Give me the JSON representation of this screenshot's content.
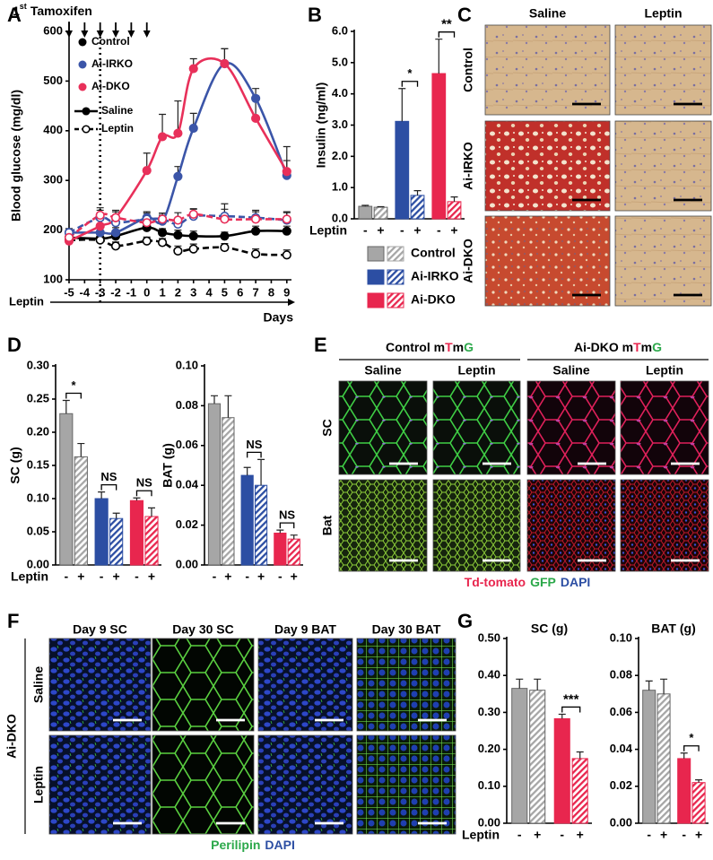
{
  "chart_data": [
    {
      "type": "line",
      "panel": "A",
      "ylabel": "Blood glucose (mg/dl)",
      "xlabel": "Days",
      "x_row_label": "Leptin",
      "tamoxifen_label": [
        "1",
        "st",
        "Tamoxifen"
      ],
      "tamoxifen_days": [
        -5,
        -4,
        -3,
        -2,
        -1,
        0
      ],
      "leptin_start": -3,
      "x": [
        -5,
        -3,
        -2,
        0,
        1,
        2,
        3,
        5,
        7,
        9
      ],
      "xlim": [
        -5,
        9.3
      ],
      "xticks": [
        -5,
        -4,
        -3,
        -2,
        -1,
        0,
        1,
        2,
        3,
        4,
        5,
        6,
        7,
        8,
        9
      ],
      "ylim": [
        100,
        600
      ],
      "yticks": [
        100,
        200,
        300,
        400,
        500,
        600
      ],
      "legend_groups": [
        {
          "name": "Control",
          "color": "#000000"
        },
        {
          "name": "Ai-IRKO",
          "color": "#3b55a8"
        },
        {
          "name": "Ai-DKO",
          "color": "#e8305a"
        }
      ],
      "legend_styles": [
        {
          "name": "Saline",
          "dashed": false
        },
        {
          "name": "Leptin",
          "dashed": true
        }
      ],
      "series": [
        {
          "color": "#000000",
          "dashed": false,
          "values": [
            185,
            183,
            188,
            205,
            195,
            190,
            188,
            188,
            198,
            198
          ],
          "errors": [
            8,
            8,
            8,
            10,
            8,
            10,
            10,
            8,
            10,
            10
          ]
        },
        {
          "color": "#000000",
          "dashed": true,
          "values": [
            180,
            180,
            168,
            178,
            175,
            158,
            162,
            165,
            152,
            150
          ],
          "errors": [
            8,
            10,
            8,
            8,
            8,
            10,
            10,
            8,
            10,
            10
          ]
        },
        {
          "color": "#3b55a8",
          "dashed": false,
          "values": [
            195,
            195,
            195,
            225,
            218,
            308,
            405,
            535,
            465,
            310
          ],
          "errors": [
            8,
            10,
            10,
            12,
            12,
            20,
            30,
            30,
            20,
            30
          ]
        },
        {
          "color": "#3b55a8",
          "dashed": true,
          "values": [
            195,
            225,
            215,
            222,
            222,
            212,
            228,
            228,
            225,
            220
          ],
          "errors": [
            8,
            15,
            12,
            12,
            12,
            12,
            15,
            25,
            15,
            15
          ]
        },
        {
          "color": "#e8305a",
          "dashed": false,
          "values": [
            178,
            208,
            225,
            320,
            388,
            395,
            525,
            535,
            425,
            318
          ],
          "errors": [
            8,
            12,
            12,
            35,
            45,
            65,
            20,
            30,
            45,
            50
          ]
        },
        {
          "color": "#e8305a",
          "dashed": true,
          "values": [
            185,
            230,
            225,
            215,
            222,
            220,
            232,
            222,
            222,
            222
          ],
          "errors": [
            8,
            15,
            15,
            15,
            12,
            15,
            10,
            20,
            15,
            15
          ]
        }
      ]
    },
    {
      "type": "bar",
      "panel": "B",
      "ylabel": "Insulin (ng/ml)",
      "x_row_label": "Leptin",
      "categories": [
        "-",
        "+",
        "-",
        "+",
        "-",
        "+"
      ],
      "values": [
        0.4,
        0.37,
        3.12,
        0.75,
        4.65,
        0.55
      ],
      "errors": [
        0.03,
        0.02,
        1.05,
        0.15,
        1.1,
        0.15
      ],
      "colors": [
        "#a6a6a6",
        "#2c4ea3",
        "#e8264e"
      ],
      "legend": [
        "Control",
        "Ai-IRKO",
        "Ai-DKO"
      ],
      "ylim": [
        0,
        6
      ],
      "yticks": [
        {
          "value": 0,
          "label": "0.0"
        },
        {
          "value": 1,
          "label": "1.0"
        },
        {
          "value": 2,
          "label": "2.0"
        },
        {
          "value": 3,
          "label": "3.0"
        },
        {
          "value": 4,
          "label": "4.0"
        },
        {
          "value": 5,
          "label": "5.0"
        },
        {
          "value": 6,
          "label": "6.0"
        }
      ],
      "annotations": [
        {
          "label": "*",
          "pair": [
            2,
            3
          ]
        },
        {
          "label": "**",
          "pair": [
            4,
            5
          ]
        }
      ]
    },
    {
      "type": "bar",
      "panel": "D",
      "ylabel": "SC (g)",
      "x_row_label": "Leptin",
      "categories": [
        "-",
        "+",
        "-",
        "+",
        "-",
        "+"
      ],
      "values": [
        0.228,
        0.163,
        0.1,
        0.07,
        0.097,
        0.073
      ],
      "errors": [
        0.02,
        0.02,
        0.01,
        0.008,
        0.004,
        0.013
      ],
      "colors": [
        "#a6a6a6",
        "#2c4ea3",
        "#e8264e"
      ],
      "ylim": [
        0,
        0.3
      ],
      "yticks": [
        {
          "value": 0,
          "label": "0.00"
        },
        0.05,
        {
          "value": 0.1,
          "label": "0.10"
        },
        0.15,
        {
          "value": 0.2,
          "label": "0.20"
        },
        0.25,
        {
          "value": 0.3,
          "label": "0.30"
        }
      ],
      "annotations": [
        {
          "label": "*",
          "pair": [
            0,
            1
          ]
        },
        {
          "label": "NS",
          "pair": [
            2,
            3
          ]
        },
        {
          "label": "NS",
          "pair": [
            4,
            5
          ]
        }
      ]
    },
    {
      "type": "bar",
      "ylabel": "BAT (g)",
      "categories": [
        "-",
        "+",
        "-",
        "+",
        "-",
        "+"
      ],
      "values": [
        0.081,
        0.074,
        0.045,
        0.04,
        0.016,
        0.013
      ],
      "errors": [
        0.004,
        0.011,
        0.004,
        0.013,
        0.0015,
        0.002
      ],
      "colors": [
        "#a6a6a6",
        "#2c4ea3",
        "#e8264e"
      ],
      "ylim": [
        0,
        0.1
      ],
      "yticks": [
        {
          "value": 0,
          "label": "0.00"
        },
        0.02,
        0.04,
        0.06,
        0.08,
        {
          "value": 0.1,
          "label": "0.10"
        }
      ],
      "annotations": [
        {
          "label": "NS",
          "pair": [
            2,
            3
          ]
        },
        {
          "label": "NS",
          "pair": [
            4,
            5
          ]
        }
      ]
    },
    {
      "type": "bar",
      "panel": "G",
      "title": "SC (g)",
      "x_row_label": "Leptin",
      "categories": [
        "-",
        "+",
        "-",
        "+"
      ],
      "values": [
        0.365,
        0.36,
        0.283,
        0.175
      ],
      "errors": [
        0.025,
        0.03,
        0.012,
        0.018
      ],
      "colors": [
        "#a6a6a6",
        "#e8264e"
      ],
      "ylim": [
        0,
        0.5
      ],
      "yticks": [
        {
          "value": 0,
          "label": "0.00"
        },
        {
          "value": 0.1,
          "label": "0.10"
        },
        {
          "value": 0.2,
          "label": "0.20"
        },
        {
          "value": 0.3,
          "label": "0.30"
        },
        {
          "value": 0.4,
          "label": "0.40"
        },
        {
          "value": 0.5,
          "label": "0.50"
        }
      ],
      "annotations": [
        {
          "label": "***",
          "pair": [
            2,
            3
          ]
        }
      ]
    },
    {
      "type": "bar",
      "title": "BAT (g)",
      "categories": [
        "-",
        "+",
        "-",
        "+"
      ],
      "values": [
        0.072,
        0.07,
        0.035,
        0.022
      ],
      "errors": [
        0.005,
        0.008,
        0.003,
        0.0015
      ],
      "colors": [
        "#a6a6a6",
        "#e8264e"
      ],
      "ylim": [
        0,
        0.1
      ],
      "yticks": [
        {
          "value": 0,
          "label": "0.00"
        },
        0.02,
        0.04,
        0.06,
        0.08,
        {
          "value": 0.1,
          "label": "0.10"
        }
      ],
      "annotations": [
        {
          "label": "*",
          "pair": [
            2,
            3
          ]
        }
      ]
    }
  ],
  "image_panels": [
    {
      "label": "C",
      "columns": [
        "Saline",
        "Leptin"
      ],
      "rows": [
        "Control",
        "Ai-IRKO",
        "Ai-DKO"
      ]
    },
    {
      "label": "E",
      "groups": [
        {
          "parts": [
            "Control m",
            "T",
            "m",
            "G"
          ]
        },
        {
          "parts": [
            "Ai-DKO m",
            "T",
            "m",
            "G"
          ]
        }
      ],
      "part_colors": [
        "#000000",
        "#e8264e",
        "#000000",
        "#2ba84a"
      ],
      "columns": [
        "Saline",
        "Leptin",
        "Saline",
        "Leptin"
      ],
      "rows": [
        "SC",
        "Bat"
      ],
      "caption": [
        {
          "text": "Td-tomato",
          "color": "#e8264e"
        },
        {
          "text": "GFP",
          "color": "#2ba84a"
        },
        {
          "text": "DAPI",
          "color": "#2c4ea3"
        }
      ]
    },
    {
      "label": "F",
      "group": "Ai-DKO",
      "columns": [
        "Day 9 SC",
        "Day 30 SC",
        "Day 9 BAT",
        "Day 30 BAT"
      ],
      "rows": [
        "Saline",
        "Leptin"
      ],
      "caption": [
        {
          "text": "Perilipin",
          "color": "#2ba84a"
        },
        {
          "text": "DAPI",
          "color": "#2c4ea3"
        }
      ]
    }
  ]
}
